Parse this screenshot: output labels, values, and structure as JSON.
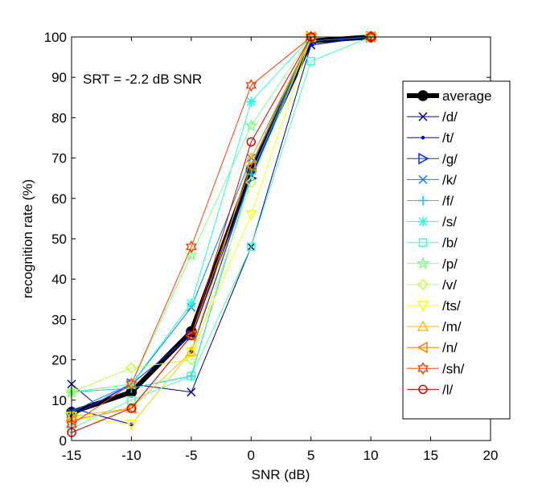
{
  "chart_data": {
    "type": "line",
    "title": "",
    "xlabel": "SNR (dB)",
    "ylabel": "recognition rate (%)",
    "xlim": [
      -15,
      20
    ],
    "ylim": [
      0,
      100
    ],
    "xticks": [
      -15,
      -10,
      -5,
      0,
      5,
      10,
      15,
      20
    ],
    "yticks": [
      0,
      10,
      20,
      30,
      40,
      50,
      60,
      70,
      80,
      90,
      100
    ],
    "grid": false,
    "legend_position": "right",
    "annotation": "SRT = -2.2 dB SNR",
    "x": [
      -15,
      -10,
      -5,
      0,
      5,
      10
    ],
    "series": [
      {
        "name": "average",
        "marker": "filled-circle",
        "color": "#000000",
        "width": 6,
        "points": [
          [
            -15,
            7
          ],
          [
            -10,
            12
          ],
          [
            -5,
            27
          ],
          [
            0,
            67
          ],
          [
            5,
            99
          ],
          [
            10,
            100
          ]
        ]
      },
      {
        "name": "/d/",
        "marker": "x",
        "color": "#00008f",
        "width": 1,
        "points": [
          [
            -15,
            14
          ],
          [
            -13,
            9
          ],
          [
            -10,
            14
          ],
          [
            -5,
            12
          ],
          [
            0,
            48
          ],
          [
            5,
            98
          ],
          [
            10,
            100
          ]
        ]
      },
      {
        "name": "/t/",
        "marker": "dot",
        "color": "#0000df",
        "width": 1,
        "points": [
          [
            -15,
            8
          ],
          [
            -10,
            4
          ],
          [
            -5,
            22
          ],
          [
            0,
            66
          ],
          [
            5,
            98
          ],
          [
            10,
            100
          ]
        ]
      },
      {
        "name": "/g/",
        "marker": "triangle-right",
        "color": "#0030ff",
        "width": 1,
        "points": [
          [
            -15,
            6
          ],
          [
            -10,
            14
          ],
          [
            -5,
            26
          ],
          [
            0,
            65
          ],
          [
            5,
            100
          ],
          [
            10,
            100
          ]
        ]
      },
      {
        "name": "/k/",
        "marker": "x",
        "color": "#0080ff",
        "width": 1,
        "points": [
          [
            -15,
            7
          ],
          [
            -13,
            10
          ],
          [
            -10,
            14
          ],
          [
            -5,
            33
          ],
          [
            0,
            70
          ],
          [
            5,
            99
          ],
          [
            10,
            100
          ]
        ]
      },
      {
        "name": "/f/",
        "marker": "plus",
        "color": "#00cfff",
        "width": 1,
        "points": [
          [
            -15,
            12
          ],
          [
            -10,
            13
          ],
          [
            -5,
            16
          ],
          [
            0,
            66
          ],
          [
            5,
            100
          ],
          [
            10,
            100
          ]
        ]
      },
      {
        "name": "/s/",
        "marker": "asterisk",
        "color": "#20ffdf",
        "width": 1,
        "points": [
          [
            -15,
            12
          ],
          [
            -10,
            14
          ],
          [
            -5,
            34
          ],
          [
            0,
            84
          ],
          [
            5,
            100
          ],
          [
            10,
            100
          ]
        ]
      },
      {
        "name": "/b/",
        "marker": "square",
        "color": "#40ffbf",
        "width": 1,
        "points": [
          [
            -15,
            3
          ],
          [
            -10,
            10
          ],
          [
            -5,
            16
          ],
          [
            0,
            48
          ],
          [
            5,
            94
          ],
          [
            10,
            100
          ]
        ]
      },
      {
        "name": "/p/",
        "marker": "pentagram",
        "color": "#80ff80",
        "width": 1,
        "points": [
          [
            -15,
            12
          ],
          [
            -10,
            14
          ],
          [
            -5,
            46
          ],
          [
            0,
            78
          ],
          [
            5,
            100
          ],
          [
            10,
            100
          ]
        ]
      },
      {
        "name": "/v/",
        "marker": "diamond",
        "color": "#bfff40",
        "width": 1,
        "points": [
          [
            -15,
            12
          ],
          [
            -10,
            18
          ],
          [
            -5,
            20
          ],
          [
            0,
            64
          ],
          [
            5,
            100
          ],
          [
            10,
            100
          ]
        ]
      },
      {
        "name": "/ts/",
        "marker": "triangle-down",
        "color": "#ffff00",
        "width": 1,
        "points": [
          [
            -15,
            6
          ],
          [
            -10,
            4
          ],
          [
            -5,
            22
          ],
          [
            0,
            56
          ],
          [
            5,
            100
          ],
          [
            10,
            100
          ]
        ]
      },
      {
        "name": "/m/",
        "marker": "triangle-up",
        "color": "#ffbf00",
        "width": 1,
        "points": [
          [
            -15,
            6
          ],
          [
            -10,
            8
          ],
          [
            -5,
            22
          ],
          [
            0,
            70
          ],
          [
            5,
            100
          ],
          [
            10,
            100
          ]
        ]
      },
      {
        "name": "/n/",
        "marker": "triangle-left",
        "color": "#ff8000",
        "width": 1,
        "points": [
          [
            -15,
            5
          ],
          [
            -10,
            8
          ],
          [
            -5,
            26
          ],
          [
            0,
            68
          ],
          [
            5,
            100
          ],
          [
            10,
            100
          ]
        ]
      },
      {
        "name": "/sh/",
        "marker": "hexagram",
        "color": "#ff4000",
        "width": 1,
        "points": [
          [
            -15,
            4
          ],
          [
            -10,
            14
          ],
          [
            -5,
            48
          ],
          [
            0,
            88
          ],
          [
            5,
            100
          ],
          [
            10,
            100
          ]
        ]
      },
      {
        "name": "/l/",
        "marker": "circle",
        "color": "#df0000",
        "width": 1,
        "points": [
          [
            -15,
            2
          ],
          [
            -10,
            8
          ],
          [
            -5,
            26
          ],
          [
            0,
            74
          ],
          [
            5,
            100
          ],
          [
            10,
            100
          ]
        ]
      }
    ]
  }
}
